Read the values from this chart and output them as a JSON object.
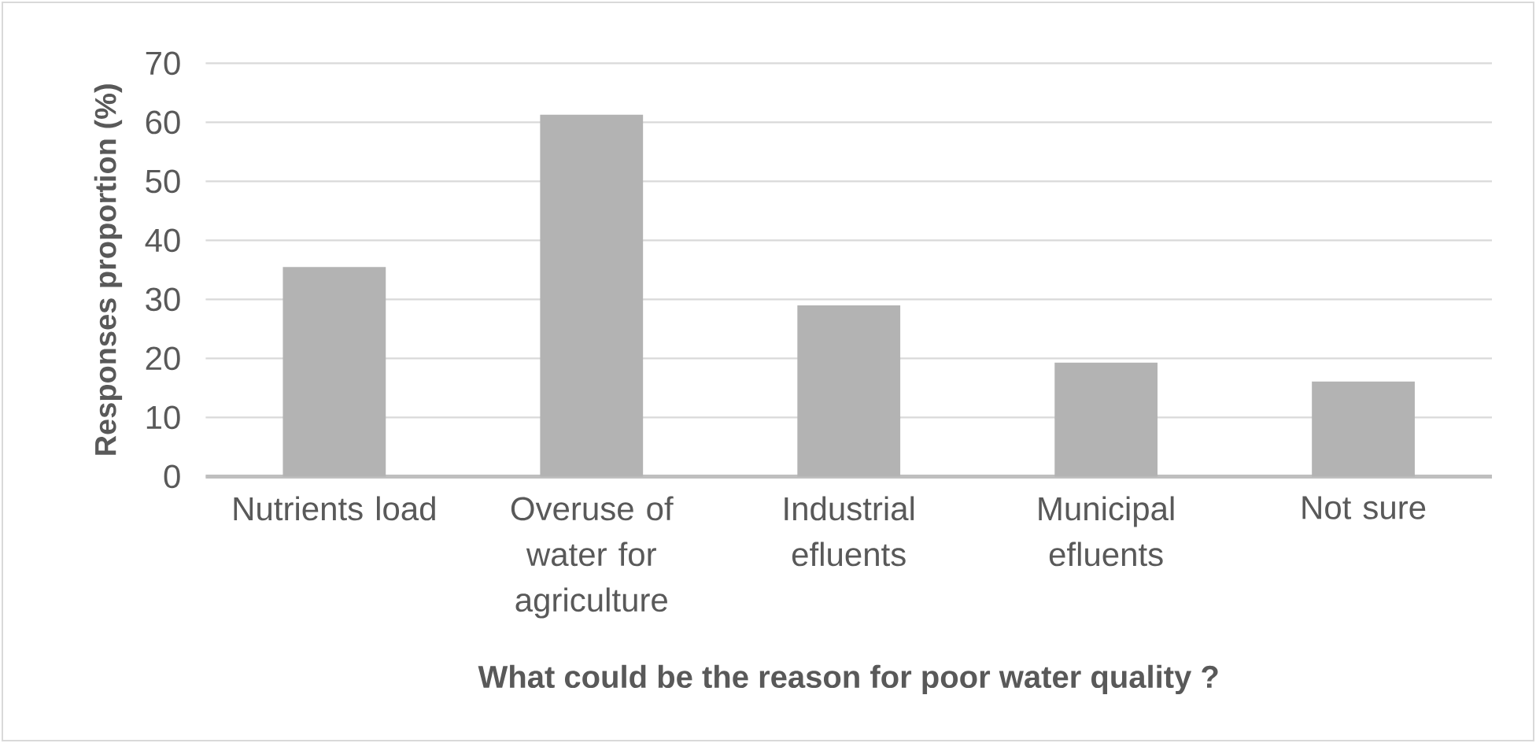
{
  "chart_data": {
    "type": "bar",
    "xlabel": "What could be the reason for poor water quality ?",
    "ylabel": "Responses proportion (%)",
    "categories": [
      "Nutrients load",
      "Overuse of water for agriculture",
      "Industrial efluents",
      "Municipal efluents",
      "Not sure"
    ],
    "values": [
      35.5,
      61.3,
      29,
      19.3,
      16.1
    ],
    "color": "#b3b3b3",
    "ylim": [
      0,
      70
    ],
    "yticks": [
      0,
      10,
      20,
      30,
      40,
      50,
      60,
      70
    ],
    "grid": "y"
  }
}
